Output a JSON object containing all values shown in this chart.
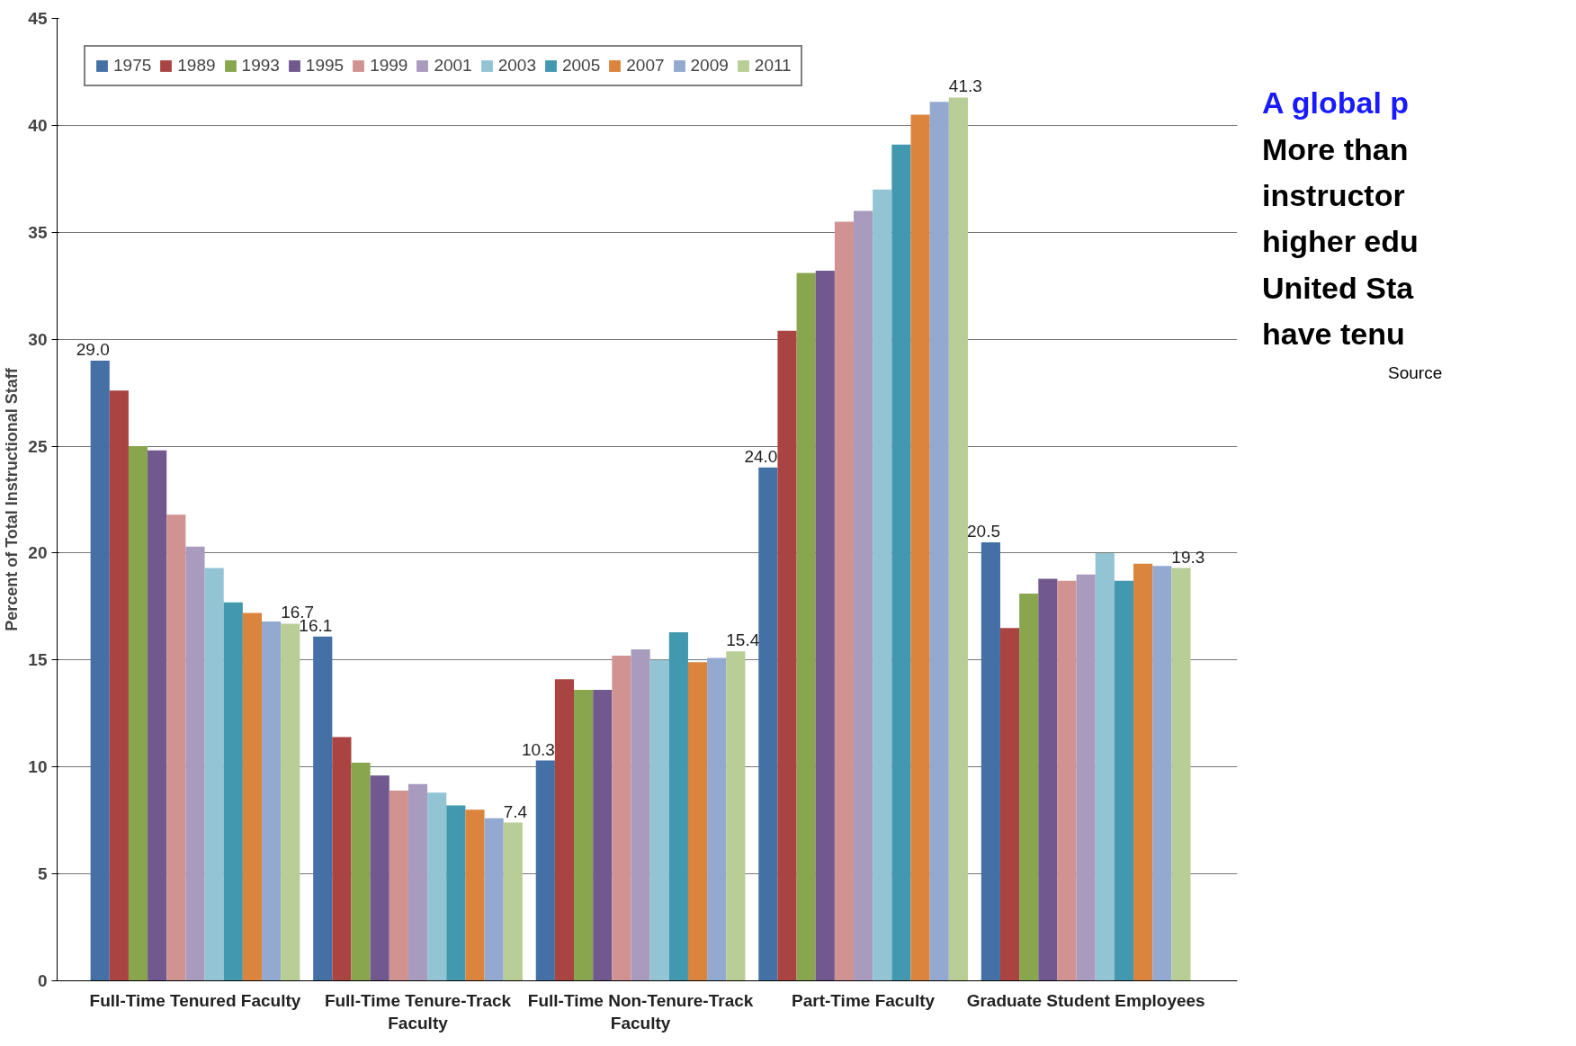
{
  "chart_data": {
    "type": "bar",
    "ylabel": "Percent of Total Instructional Staff",
    "categories": [
      "Full-Time Tenured Faculty",
      "Full-Time Tenure-Track Faculty",
      "Full-Time Non-Tenure-Track Faculty",
      "Part-Time Faculty",
      "Graduate Student Employees"
    ],
    "series": [
      {
        "name": "1975",
        "color": "#4470a6",
        "values": [
          29.0,
          16.1,
          10.3,
          24.0,
          20.5
        ],
        "value_labels": [
          "29.0",
          "16.1",
          "10.3",
          "24.0",
          "20.5"
        ]
      },
      {
        "name": "1989",
        "color": "#a94442",
        "values": [
          27.6,
          11.4,
          14.1,
          30.4,
          16.5
        ]
      },
      {
        "name": "1993",
        "color": "#89a54e",
        "values": [
          25.0,
          10.2,
          13.6,
          33.1,
          18.1
        ]
      },
      {
        "name": "1995",
        "color": "#71588f",
        "values": [
          24.8,
          9.6,
          13.6,
          33.2,
          18.8
        ]
      },
      {
        "name": "1999",
        "color": "#d19392",
        "values": [
          21.8,
          8.9,
          15.2,
          35.5,
          18.7
        ]
      },
      {
        "name": "2001",
        "color": "#a99bbd",
        "values": [
          20.3,
          9.2,
          15.5,
          36.0,
          19.0
        ]
      },
      {
        "name": "2003",
        "color": "#93c4d4",
        "values": [
          19.3,
          8.8,
          15.0,
          37.0,
          20.0
        ]
      },
      {
        "name": "2005",
        "color": "#4198af",
        "values": [
          17.7,
          8.2,
          16.3,
          39.1,
          18.7
        ]
      },
      {
        "name": "2007",
        "color": "#db843d",
        "values": [
          17.2,
          8.0,
          14.9,
          40.5,
          19.5
        ]
      },
      {
        "name": "2009",
        "color": "#93a9cf",
        "values": [
          16.8,
          7.6,
          15.1,
          41.1,
          19.4
        ]
      },
      {
        "name": "2011",
        "color": "#b9cd96",
        "values": [
          16.7,
          7.4,
          15.4,
          41.3,
          19.3
        ],
        "value_labels": [
          "16.7",
          "7.4",
          "15.4",
          "41.3",
          "19.3"
        ]
      }
    ],
    "ylim": [
      0,
      45
    ],
    "yticks": [
      0,
      5,
      10,
      15,
      20,
      25,
      30,
      35,
      40,
      45
    ],
    "grid": "y",
    "legend": "top left",
    "annotations": [
      "A global p",
      "More than",
      "instructor",
      "higher edu",
      "United Sta",
      "have tenu",
      "Source"
    ]
  }
}
